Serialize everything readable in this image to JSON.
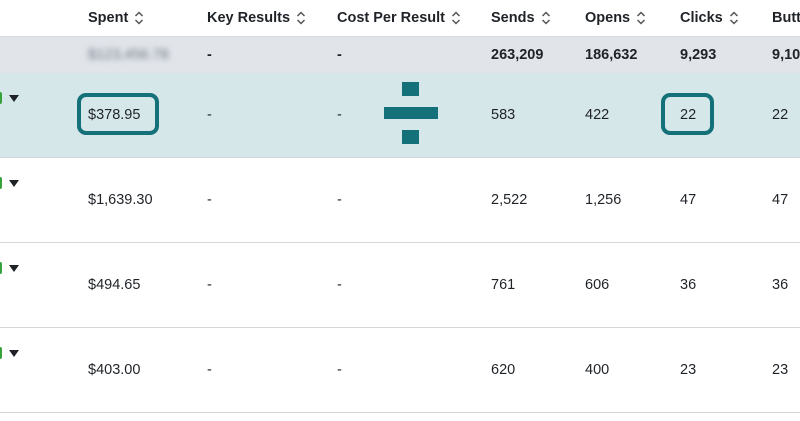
{
  "columns": {
    "spent": "Spent",
    "key_results": "Key Results",
    "cost_per_result": "Cost Per Result",
    "sends": "Sends",
    "opens": "Opens",
    "clicks": "Clicks",
    "buttons": "Butt"
  },
  "totals": {
    "spent": "$123,456.78",
    "key_results": "-",
    "cost_per_result": "-",
    "sends": "263,209",
    "opens": "186,632",
    "clicks": "9,293",
    "buttons": "9,10"
  },
  "rows": [
    {
      "spent": "$378.95",
      "key_results": "-",
      "cost_per_result": "-",
      "sends": "583",
      "opens": "422",
      "clicks": "22",
      "buttons": "22"
    },
    {
      "spent": "$1,639.30",
      "key_results": "-",
      "cost_per_result": "-",
      "sends": "2,522",
      "opens": "1,256",
      "clicks": "47",
      "buttons": "47"
    },
    {
      "spent": "$494.65",
      "key_results": "-",
      "cost_per_result": "-",
      "sends": "761",
      "opens": "606",
      "clicks": "36",
      "buttons": "36"
    },
    {
      "spent": "$403.00",
      "key_results": "-",
      "cost_per_result": "-",
      "sends": "620",
      "opens": "400",
      "clicks": "23",
      "buttons": "23"
    }
  ],
  "colors": {
    "highlight": "#147079",
    "selected_row": "#d6e7ea",
    "totals_row": "#e1e5ea",
    "status_green": "#37a13b"
  },
  "annotation": {
    "operator_icon": "divide-icon"
  }
}
